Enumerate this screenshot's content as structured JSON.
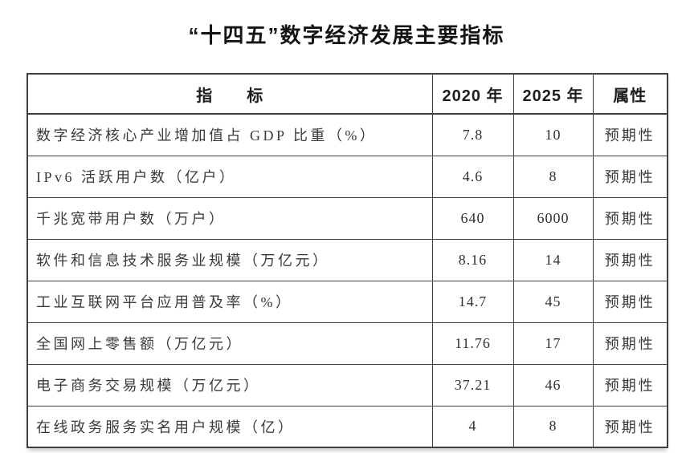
{
  "title": "“十四五”数字经济发展主要指标",
  "colors": {
    "background": "#ffffff",
    "border": "#3f3f3f",
    "title_text": "#141414",
    "body_text": "#3a3a3a"
  },
  "table": {
    "headers": {
      "indicator": "指　　标",
      "y2020": "2020 年",
      "y2025": "2025 年",
      "attribute": "属性"
    },
    "rows": [
      {
        "indicator": "数字经济核心产业增加值占 GDP 比重（%）",
        "y2020": "7.8",
        "y2025": "10",
        "attribute": "预期性"
      },
      {
        "indicator": "IPv6 活跃用户数（亿户）",
        "y2020": "4.6",
        "y2025": "8",
        "attribute": "预期性"
      },
      {
        "indicator": "千兆宽带用户数（万户）",
        "y2020": "640",
        "y2025": "6000",
        "attribute": "预期性"
      },
      {
        "indicator": "软件和信息技术服务业规模（万亿元）",
        "y2020": "8.16",
        "y2025": "14",
        "attribute": "预期性"
      },
      {
        "indicator": "工业互联网平台应用普及率（%）",
        "y2020": "14.7",
        "y2025": "45",
        "attribute": "预期性"
      },
      {
        "indicator": "全国网上零售额（万亿元）",
        "y2020": "11.76",
        "y2025": "17",
        "attribute": "预期性"
      },
      {
        "indicator": "电子商务交易规模（万亿元）",
        "y2020": "37.21",
        "y2025": "46",
        "attribute": "预期性"
      },
      {
        "indicator": "在线政务服务实名用户规模（亿）",
        "y2020": "4",
        "y2025": "8",
        "attribute": "预期性"
      }
    ]
  }
}
